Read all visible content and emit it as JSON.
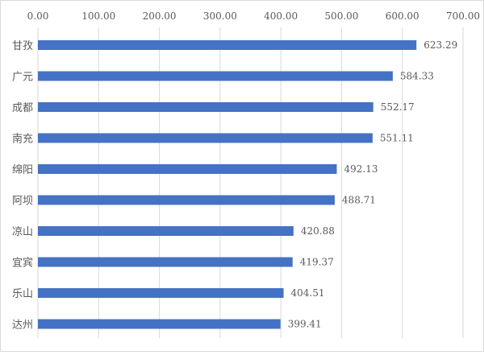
{
  "chart_data": {
    "type": "bar",
    "orientation": "horizontal",
    "title": "",
    "xlabel": "",
    "ylabel": "",
    "xlim": [
      0,
      700
    ],
    "ticks": [
      "0.00",
      "100.00",
      "200.00",
      "300.00",
      "400.00",
      "500.00",
      "600.00",
      "700.00"
    ],
    "tick_values": [
      0,
      100,
      200,
      300,
      400,
      500,
      600,
      700
    ],
    "x_axis_position": "top",
    "grid": true,
    "categories": [
      "甘孜",
      "广元",
      "成都",
      "南充",
      "绵阳",
      "阿坝",
      "凉山",
      "宜宾",
      "乐山",
      "达州"
    ],
    "values": [
      623.29,
      584.33,
      552.17,
      551.11,
      492.13,
      488.71,
      420.88,
      419.37,
      404.51,
      399.41
    ],
    "labels": [
      "623.29",
      "584.33",
      "552.17",
      "551.11",
      "492.13",
      "488.71",
      "420.88",
      "419.37",
      "404.51",
      "399.41"
    ],
    "bar_color": "#4472C4",
    "grid_color": "#d9d9d9"
  }
}
